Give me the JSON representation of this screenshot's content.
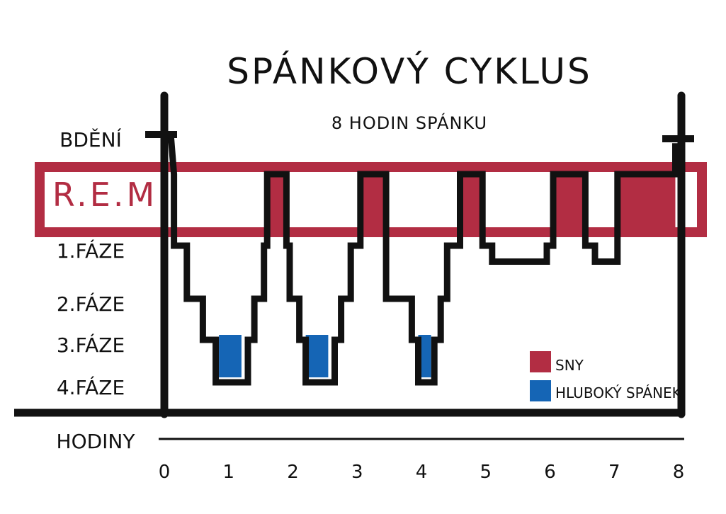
{
  "chart_data": {
    "type": "line",
    "title": "SPÁNKOVÝ CYKLUS",
    "subtitle": "8 HODIN SPÁNKU",
    "xlabel": "HODINY",
    "xlim": [
      0,
      8
    ],
    "x_ticks": [
      "0",
      "1",
      "2",
      "3",
      "4",
      "5",
      "6",
      "7",
      "8"
    ],
    "y_categories": [
      "BDĚNÍ",
      "R.E.M",
      "1.FÁZE",
      "2.FÁZE",
      "3.FÁZE",
      "4.FÁZE"
    ],
    "series": [
      {
        "name": "",
        "points": [
          [
            0.1,
            0
          ],
          [
            0.15,
            1
          ],
          [
            0.15,
            2
          ],
          [
            0.35,
            2
          ],
          [
            0.35,
            3
          ],
          [
            0.6,
            3
          ],
          [
            0.6,
            4
          ],
          [
            0.8,
            4
          ],
          [
            0.8,
            5
          ],
          [
            1.3,
            5
          ],
          [
            1.3,
            4
          ],
          [
            1.4,
            4
          ],
          [
            1.4,
            3
          ],
          [
            1.55,
            3
          ],
          [
            1.55,
            2
          ],
          [
            1.6,
            2
          ],
          [
            1.6,
            1
          ],
          [
            1.9,
            1
          ],
          [
            1.9,
            2
          ],
          [
            1.95,
            2
          ],
          [
            1.95,
            3
          ],
          [
            2.1,
            3
          ],
          [
            2.1,
            4
          ],
          [
            2.2,
            4
          ],
          [
            2.2,
            5
          ],
          [
            2.65,
            5
          ],
          [
            2.65,
            4
          ],
          [
            2.75,
            4
          ],
          [
            2.75,
            3
          ],
          [
            2.9,
            3
          ],
          [
            2.9,
            2
          ],
          [
            3.05,
            2
          ],
          [
            3.05,
            1
          ],
          [
            3.45,
            1
          ],
          [
            3.45,
            3
          ],
          [
            3.85,
            3
          ],
          [
            3.85,
            4
          ],
          [
            3.95,
            4
          ],
          [
            3.95,
            5
          ],
          [
            4.2,
            5
          ],
          [
            4.2,
            4
          ],
          [
            4.3,
            4
          ],
          [
            4.3,
            3
          ],
          [
            4.4,
            3
          ],
          [
            4.4,
            2
          ],
          [
            4.6,
            2
          ],
          [
            4.6,
            1
          ],
          [
            4.95,
            1
          ],
          [
            4.95,
            2
          ],
          [
            5.1,
            2
          ],
          [
            5.1,
            2.3
          ],
          [
            5.95,
            2.3
          ],
          [
            5.95,
            2
          ],
          [
            6.05,
            2
          ],
          [
            6.05,
            1
          ],
          [
            6.55,
            1
          ],
          [
            6.55,
            2
          ],
          [
            6.7,
            2
          ],
          [
            6.7,
            2.3
          ],
          [
            7.05,
            2.3
          ],
          [
            7.05,
            1
          ],
          [
            7.95,
            1
          ],
          [
            7.95,
            0.3
          ],
          [
            8.05,
            0.3
          ],
          [
            8.05,
            0
          ]
        ]
      }
    ],
    "rem_segments": [
      [
        1.6,
        1.9
      ],
      [
        3.05,
        3.45
      ],
      [
        4.6,
        4.95
      ],
      [
        6.05,
        6.55
      ],
      [
        7.05,
        7.95
      ]
    ],
    "deep_sleep_segments": [
      [
        0.85,
        1.2
      ],
      [
        2.2,
        2.55
      ],
      [
        3.95,
        4.15
      ]
    ],
    "legend": {
      "placement": "bottom-right",
      "items": [
        {
          "label": "SNY",
          "color": "#b22d43"
        },
        {
          "label": "HLUBOKÝ SPÁNEK",
          "color": "#1565b5"
        }
      ]
    },
    "colors": {
      "rem": "#b22d43",
      "deep": "#1565b5",
      "line": "#111111"
    }
  }
}
